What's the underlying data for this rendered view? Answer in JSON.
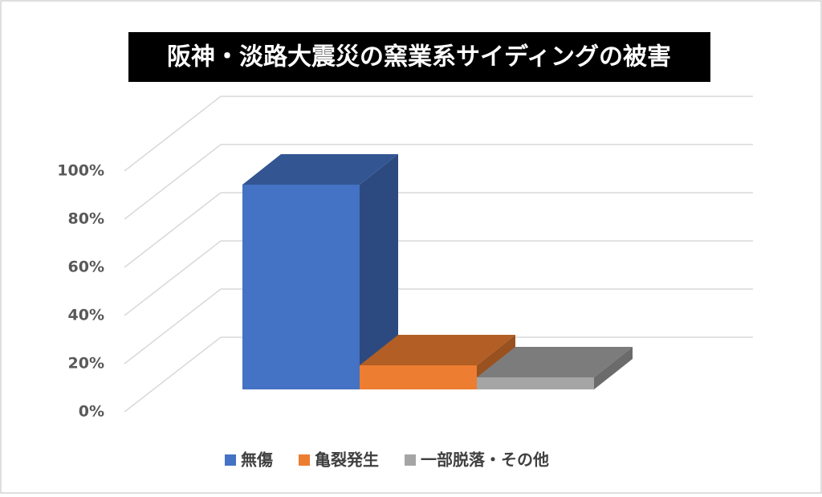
{
  "chart_data": {
    "type": "bar3d",
    "title": "阪神・淡路大震災の窯業系サイディングの被害",
    "series": [
      {
        "name": "無傷",
        "color": "#4472c4",
        "values": [
          85
        ]
      },
      {
        "name": "亀裂発生",
        "color": "#ed7d31",
        "values": [
          10
        ]
      },
      {
        "name": "一部脱落・その他",
        "color": "#a5a5a5",
        "values": [
          5
        ]
      }
    ],
    "ylim": [
      0,
      100
    ],
    "yticks": [
      {
        "value": 0,
        "label": "0%"
      },
      {
        "value": 20,
        "label": "20%"
      },
      {
        "value": 40,
        "label": "40%"
      },
      {
        "value": 60,
        "label": "60%"
      },
      {
        "value": 80,
        "label": "80%"
      },
      {
        "value": 100,
        "label": "100%"
      }
    ],
    "grid": true,
    "legend": "bottom"
  }
}
